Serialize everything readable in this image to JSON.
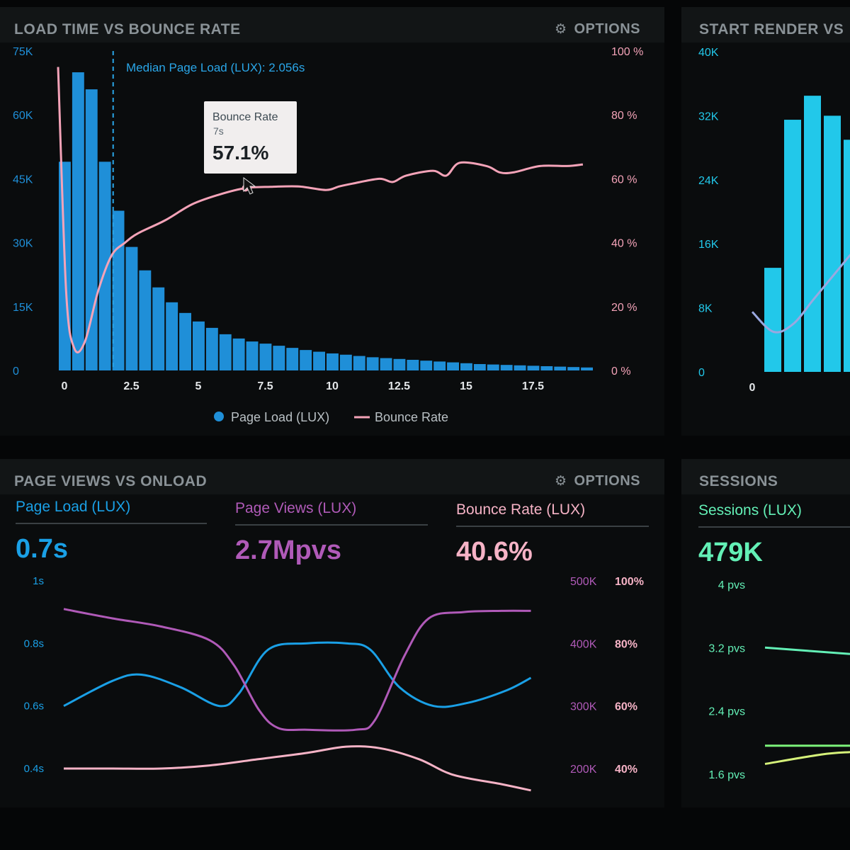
{
  "panels": {
    "load_vs_bounce": {
      "title": "LOAD TIME VS BOUNCE RATE",
      "options_label": "OPTIONS",
      "options_icon": "gear-icon"
    },
    "start_render": {
      "title": "START RENDER VS"
    },
    "pageviews_onload": {
      "title": "PAGE VIEWS VS ONLOAD",
      "options_label": "OPTIONS",
      "options_icon": "gear-icon"
    },
    "sessions": {
      "title": "SESSIONS"
    }
  },
  "kpis": [
    {
      "label": "Page Load (LUX)",
      "value": "0.7s",
      "color": "#1aa0e6"
    },
    {
      "label": "Page Views (LUX)",
      "value": "2.7Mpvs",
      "color": "#b05ab8"
    },
    {
      "label": "Bounce Rate (LUX)",
      "value": "40.6%",
      "color": "#f6b3c6"
    },
    {
      "label": "Sessions (LUX)",
      "value": "479K",
      "color": "#63f0b6"
    }
  ],
  "tooltip": {
    "title": "Bounce Rate",
    "subtitle": "7s",
    "value": "57.1%"
  },
  "median_label": "Median Page Load (LUX): 2.056s",
  "chart_data": [
    {
      "id": "load_vs_bounce",
      "type": "bar",
      "title": "LOAD TIME VS BOUNCE RATE",
      "x_ticks": [
        "0",
        "2.5",
        "5",
        "7.5",
        "10",
        "12.5",
        "15",
        "17.5"
      ],
      "x_tick_values": [
        0,
        2.5,
        5,
        7.5,
        10,
        12.5,
        15,
        17.5
      ],
      "xlim": [
        0,
        20
      ],
      "y_left_ticks": [
        "0",
        "15K",
        "30K",
        "45K",
        "60K",
        "75K"
      ],
      "y_left_values": [
        0,
        15000,
        30000,
        45000,
        60000,
        75000
      ],
      "ylim_left": [
        0,
        75000
      ],
      "y_right_ticks": [
        "0 %",
        "20 %",
        "40 %",
        "60 %",
        "80 %",
        "100 %"
      ],
      "y_right_values": [
        0,
        20,
        40,
        60,
        80,
        100
      ],
      "ylim_right": [
        0,
        100
      ],
      "bar_width": 0.5,
      "bars": {
        "name": "Page Load (LUX)",
        "color": "#1f8fd8",
        "x": [
          0,
          0.5,
          1,
          1.5,
          2,
          2.5,
          3,
          3.5,
          4,
          4.5,
          5,
          5.5,
          6,
          6.5,
          7,
          7.5,
          8,
          8.5,
          9,
          9.5,
          10,
          10.5,
          11,
          11.5,
          12,
          12.5,
          13,
          13.5,
          14,
          14.5,
          15,
          15.5,
          16,
          16.5,
          17,
          17.5,
          18,
          18.5,
          19,
          19.5
        ],
        "values": [
          49000,
          70000,
          66000,
          49000,
          37500,
          29000,
          23500,
          19500,
          16000,
          13500,
          11500,
          10000,
          8500,
          7500,
          6800,
          6300,
          5800,
          5300,
          4800,
          4400,
          4000,
          3700,
          3400,
          3100,
          2900,
          2700,
          2500,
          2300,
          2100,
          1900,
          1700,
          1500,
          1400,
          1300,
          1200,
          1100,
          1000,
          900,
          800,
          700
        ]
      },
      "line": {
        "name": "Bounce Rate",
        "color": "#f4a3b8",
        "x": [
          0,
          0.3,
          0.6,
          1,
          1.5,
          2,
          2.5,
          3,
          4,
          5,
          6,
          7,
          8,
          9,
          10,
          10.5,
          11,
          12,
          12.5,
          13,
          14,
          14.5,
          15,
          16,
          16.5,
          17,
          18,
          19,
          19.6
        ],
        "values": [
          95,
          25,
          7,
          9,
          25,
          36,
          40,
          43,
          47,
          52,
          55,
          57.1,
          57.5,
          57.6,
          56.5,
          57.6,
          58.5,
          60,
          59,
          61,
          62.5,
          61,
          65,
          64,
          62,
          62,
          64,
          64,
          64.5
        ]
      },
      "median": {
        "x": 2.056
      },
      "tooltip_point": {
        "x": 7,
        "value": 57.1
      },
      "legend": [
        "Page Load (LUX)",
        "Bounce Rate"
      ],
      "legend_position": "bottom"
    },
    {
      "id": "start_render",
      "type": "bar",
      "title": "START RENDER VS",
      "x_ticks": [
        "0"
      ],
      "y_left_ticks": [
        "0",
        "8K",
        "16K",
        "24K",
        "32K",
        "40K"
      ],
      "ylim_left": [
        0,
        40000
      ],
      "bars": {
        "color": "#22c8ea",
        "values": [
          13000,
          31500,
          34500,
          32000,
          29000
        ]
      },
      "line": {
        "color": "#9aa8e0",
        "values": [
          7500,
          5000,
          6000,
          9000,
          12000,
          15000
        ]
      }
    },
    {
      "id": "pageviews_onload",
      "type": "line",
      "title": "PAGE VIEWS VS ONLOAD",
      "y_left_ticks": [
        "0.4s",
        "0.6s",
        "0.8s",
        "1s"
      ],
      "y_left_values": [
        0.4,
        0.6,
        0.8,
        1.0
      ],
      "ylim_left": [
        0.4,
        1.0
      ],
      "y_mid_ticks": [
        "200K",
        "300K",
        "400K",
        "500K"
      ],
      "y_mid_values": [
        200000,
        300000,
        400000,
        500000
      ],
      "ylim_mid": [
        200000,
        500000
      ],
      "y_right_ticks": [
        "40%",
        "60%",
        "80%",
        "100%"
      ],
      "y_right_values": [
        40,
        60,
        80,
        100
      ],
      "ylim_right": [
        40,
        100
      ],
      "xlim": [
        0,
        10
      ],
      "series": [
        {
          "name": "Page Load (LUX)",
          "color": "#1aa0e6",
          "axis": "left",
          "x": [
            0,
            1,
            1.6,
            2.4,
            3.2,
            3.6,
            4.2,
            5,
            5.8,
            6.3,
            6.9,
            7.6,
            8.3,
            9.1,
            9.6
          ],
          "values": [
            0.6,
            0.68,
            0.7,
            0.66,
            0.6,
            0.64,
            0.78,
            0.8,
            0.8,
            0.78,
            0.66,
            0.6,
            0.61,
            0.65,
            0.69
          ]
        },
        {
          "name": "Page Views (LUX)",
          "color": "#b05ab8",
          "axis": "mid",
          "x": [
            0,
            1,
            2,
            3,
            3.5,
            4,
            4.4,
            5,
            6,
            6.4,
            7,
            7.5,
            8.2,
            9,
            9.6
          ],
          "values": [
            455000,
            440000,
            427000,
            405000,
            365000,
            295000,
            265000,
            262000,
            262000,
            278000,
            380000,
            440000,
            450000,
            452000,
            452000
          ]
        },
        {
          "name": "Bounce Rate (LUX)",
          "color": "#f6b3c6",
          "axis": "right",
          "x": [
            0,
            1,
            2,
            3,
            4,
            5,
            5.8,
            6.5,
            7.3,
            8,
            9,
            9.6
          ],
          "values": [
            40,
            40,
            40,
            41,
            43,
            45,
            47,
            46.5,
            43,
            38,
            35,
            33
          ]
        }
      ]
    },
    {
      "id": "sessions",
      "type": "line",
      "title": "SESSIONS",
      "y_left_ticks": [
        "1.6 pvs",
        "2.4 pvs",
        "3.2 pvs",
        "4 pvs"
      ],
      "y_left_values": [
        1.6,
        2.4,
        3.2,
        4.0
      ],
      "ylim_left": [
        1.6,
        4.0
      ],
      "series": [
        {
          "color": "#63f0b6",
          "values": [
            3.2,
            3.12
          ]
        },
        {
          "color": "#7cf27a",
          "values": [
            1.96,
            1.96
          ]
        },
        {
          "color": "#d6f27a",
          "values": [
            1.73,
            1.85,
            1.88
          ]
        }
      ]
    }
  ]
}
